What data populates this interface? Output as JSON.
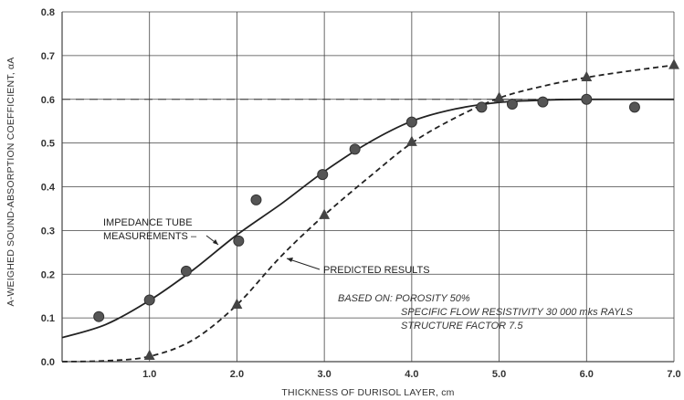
{
  "chart_data": {
    "type": "line",
    "title": "",
    "xlabel": "THICKNESS OF DURISOL LAYER, cm",
    "ylabel": "A-WEIGHED SOUND-ABSORPTION COEFFICIENT, αA",
    "xlim": [
      0,
      7
    ],
    "ylim": [
      0,
      0.8
    ],
    "x_ticks": [
      "1.0",
      "2.0",
      "3.0",
      "4.0",
      "5.0",
      "6.0",
      "7.0"
    ],
    "y_ticks": [
      "0.0",
      "0.1",
      "0.2",
      "0.3",
      "0.4",
      "0.5",
      "0.6",
      "0.7",
      "0.8"
    ],
    "grid": true,
    "reference_line": {
      "y": 0.6,
      "style": "dashed"
    },
    "series": [
      {
        "name": "IMPEDANCE TUBE MEASUREMENTS",
        "marker": "circle",
        "line_style": "solid",
        "points": [
          [
            0.42,
            0.103
          ],
          [
            1.0,
            0.141
          ],
          [
            1.42,
            0.207
          ],
          [
            2.02,
            0.276
          ],
          [
            2.22,
            0.37
          ],
          [
            2.98,
            0.428
          ],
          [
            3.35,
            0.486
          ],
          [
            4.0,
            0.548
          ],
          [
            4.8,
            0.582
          ],
          [
            5.15,
            0.589
          ],
          [
            5.5,
            0.594
          ],
          [
            6.0,
            0.6
          ],
          [
            6.55,
            0.582
          ]
        ],
        "curve": [
          [
            0.0,
            0.055
          ],
          [
            0.5,
            0.085
          ],
          [
            1.0,
            0.14
          ],
          [
            1.5,
            0.21
          ],
          [
            2.0,
            0.29
          ],
          [
            2.5,
            0.36
          ],
          [
            3.0,
            0.435
          ],
          [
            3.5,
            0.5
          ],
          [
            4.0,
            0.55
          ],
          [
            4.5,
            0.578
          ],
          [
            5.0,
            0.593
          ],
          [
            5.5,
            0.598
          ],
          [
            6.0,
            0.6
          ],
          [
            7.0,
            0.6
          ]
        ]
      },
      {
        "name": "PREDICTED RESULTS",
        "marker": "triangle",
        "line_style": "dashed",
        "points": [
          [
            1.0,
            0.013
          ],
          [
            2.0,
            0.13
          ],
          [
            3.0,
            0.335
          ],
          [
            4.0,
            0.502
          ],
          [
            5.0,
            0.603
          ],
          [
            6.0,
            0.65
          ],
          [
            7.0,
            0.678
          ]
        ],
        "curve": [
          [
            0.0,
            0.0
          ],
          [
            0.5,
            0.002
          ],
          [
            1.0,
            0.012
          ],
          [
            1.5,
            0.05
          ],
          [
            2.0,
            0.13
          ],
          [
            2.5,
            0.24
          ],
          [
            3.0,
            0.335
          ],
          [
            3.5,
            0.42
          ],
          [
            4.0,
            0.5
          ],
          [
            4.5,
            0.558
          ],
          [
            5.0,
            0.603
          ],
          [
            5.5,
            0.63
          ],
          [
            6.0,
            0.65
          ],
          [
            6.5,
            0.665
          ],
          [
            7.0,
            0.678
          ]
        ]
      }
    ],
    "annotations": {
      "impedance_label_line1": "IMPEDANCE TUBE",
      "impedance_label_line2": "MEASUREMENTS –",
      "predicted_label": "PREDICTED RESULTS",
      "based_on_line1": "BASED ON: POROSITY 50%",
      "based_on_line2": "SPECIFIC FLOW RESISTIVITY 30 000 mks RAYLS",
      "based_on_line3": "STRUCTURE FACTOR 7.5"
    }
  }
}
